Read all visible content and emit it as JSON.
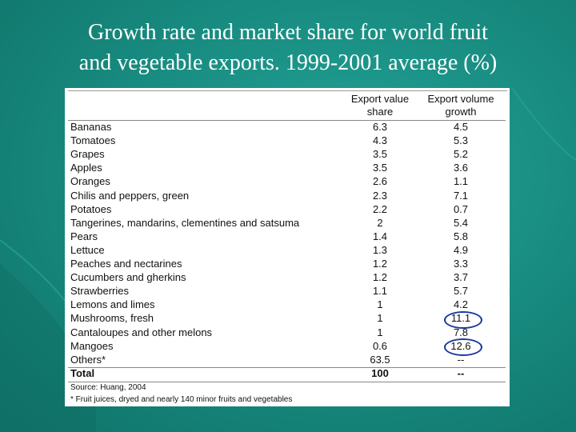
{
  "title": {
    "line1": "Growth rate and market share for world fruit",
    "line2": "and vegetable exports. 1999-2001 average (%)"
  },
  "table": {
    "col1_header": [
      "Export value",
      "share"
    ],
    "col2_header": [
      "Export volume",
      "growth"
    ],
    "rows": [
      {
        "name": "Bananas",
        "share": "6.3",
        "growth": "4.5"
      },
      {
        "name": "Tomatoes",
        "share": "4.3",
        "growth": "5.3"
      },
      {
        "name": "Grapes",
        "share": "3.5",
        "growth": "5.2"
      },
      {
        "name": "Apples",
        "share": "3.5",
        "growth": "3.6"
      },
      {
        "name": "Oranges",
        "share": "2.6",
        "growth": "1.1"
      },
      {
        "name": "Chilis and peppers, green",
        "share": "2.3",
        "growth": "7.1"
      },
      {
        "name": "Potatoes",
        "share": "2.2",
        "growth": "0.7"
      },
      {
        "name": "Tangerines, mandarins, clementines and satsuma",
        "share": "2",
        "growth": "5.4"
      },
      {
        "name": "Pears",
        "share": "1.4",
        "growth": "5.8"
      },
      {
        "name": "Lettuce",
        "share": "1.3",
        "growth": "4.9"
      },
      {
        "name": "Peaches and nectarines",
        "share": "1.2",
        "growth": "3.3"
      },
      {
        "name": "Cucumbers and gherkins",
        "share": "1.2",
        "growth": "3.7"
      },
      {
        "name": "Strawberries",
        "share": "1.1",
        "growth": "5.7"
      },
      {
        "name": "Lemons and limes",
        "share": "1",
        "growth": "4.2"
      },
      {
        "name": "Mushrooms, fresh",
        "share": "1",
        "growth": "11.1"
      },
      {
        "name": "Cantaloupes and other melons",
        "share": "1",
        "growth": "7.8"
      },
      {
        "name": "Mangoes",
        "share": "0.6",
        "growth": "12.6"
      },
      {
        "name": "Others*",
        "share": "63.5",
        "growth": "--"
      }
    ],
    "total": {
      "name": "Total",
      "share": "100",
      "growth": "--"
    },
    "source": "Source:  Huang, 2004",
    "note": "* Fruit juices, dryed and nearly 140 minor fruits and vegetables"
  },
  "colors": {
    "background": "#17887d",
    "title": "#ffffff",
    "highlight_oval": "#1a3a9c"
  }
}
